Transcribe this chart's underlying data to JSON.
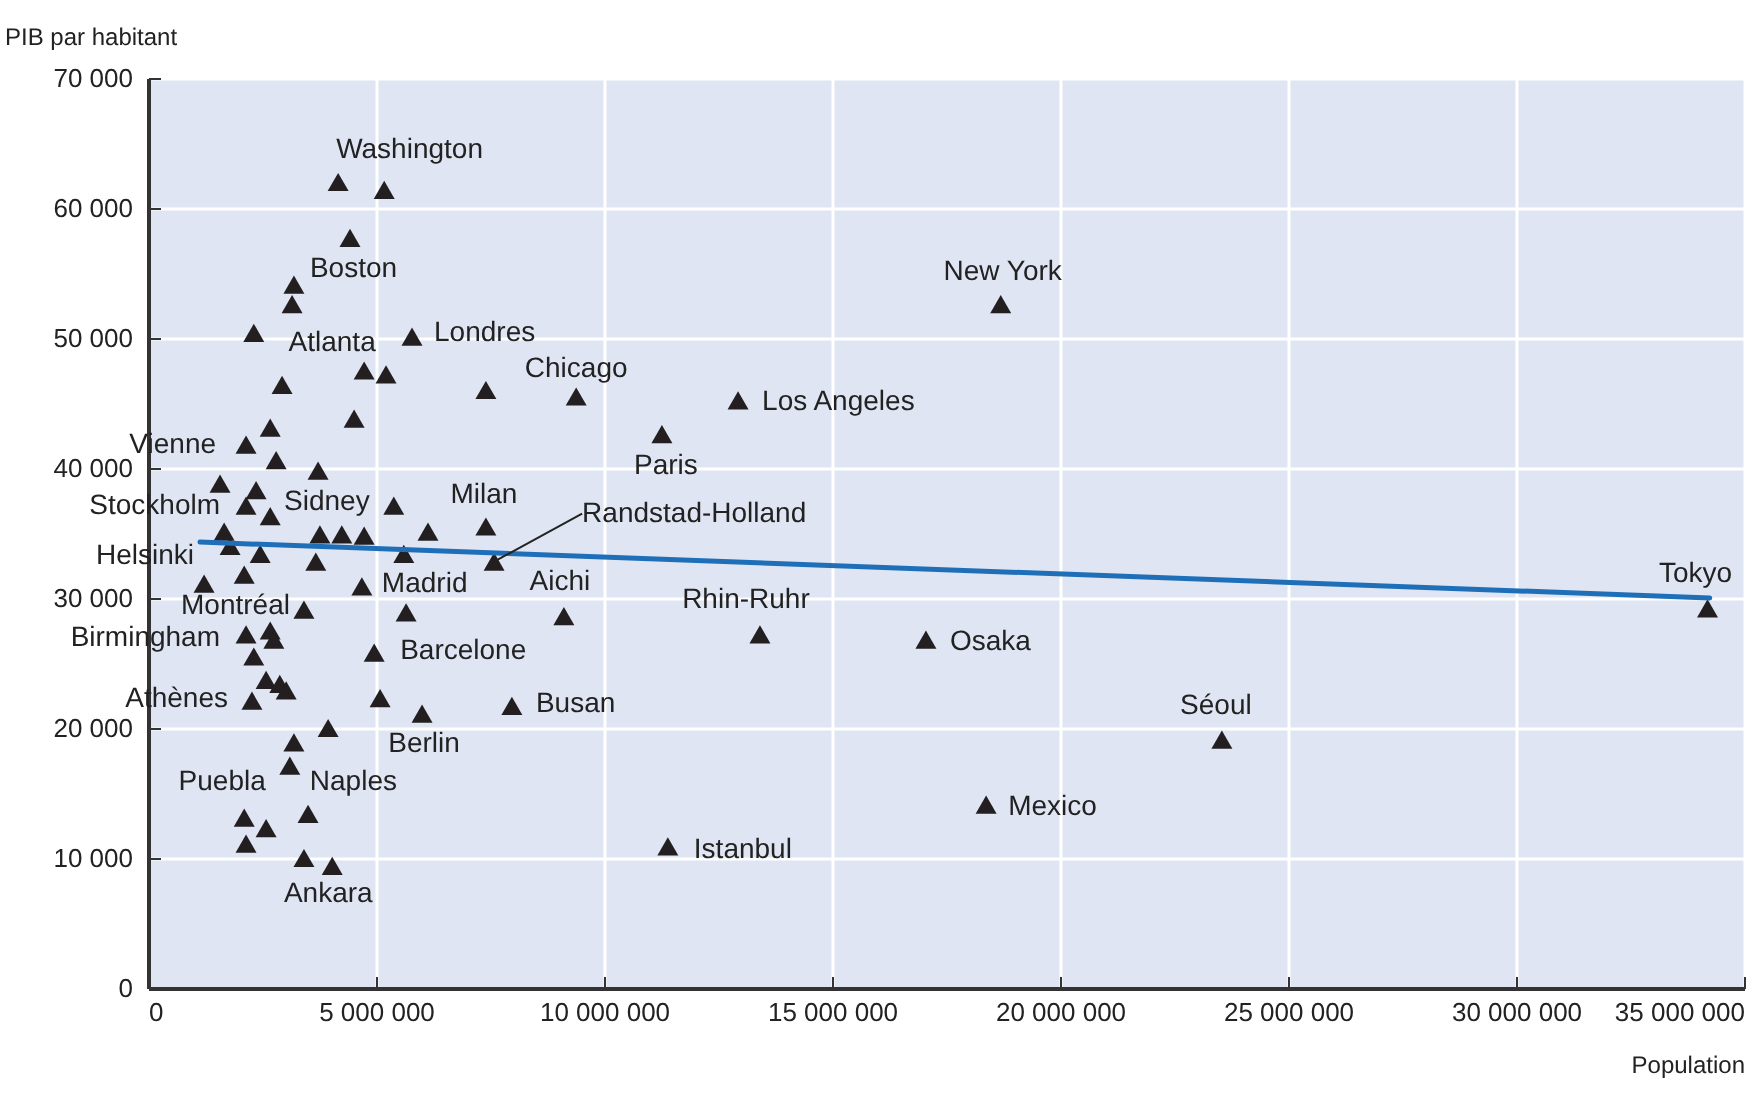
{
  "chart_data": {
    "type": "scatter",
    "xlabel": "Population",
    "ylabel": "PIB par habitant",
    "xlim": [
      0,
      35000000
    ],
    "xticks": [
      0,
      {
        "value": 5000000,
        "label": "5 000 000"
      },
      {
        "value": 10000000,
        "label": "10 000 000"
      },
      {
        "value": 15000000,
        "label": "15 000 000"
      },
      {
        "value": 20000000,
        "label": "20 000 000"
      },
      {
        "value": 25000000,
        "label": "25 000 000"
      },
      {
        "value": 30000000,
        "label": "30 000 000"
      },
      {
        "value": 35000000,
        "label": "35 000 000"
      }
    ],
    "ylim": [
      0,
      70000
    ],
    "yticks": [
      0,
      {
        "value": 10000,
        "label": "10 000"
      },
      {
        "value": 20000,
        "label": "20 000"
      },
      {
        "value": 30000,
        "label": "30 000"
      },
      {
        "value": 40000,
        "label": "40 000"
      },
      {
        "value": 50000,
        "label": "50 000"
      },
      {
        "value": 60000,
        "label": "60 000"
      },
      {
        "value": 70000,
        "label": "70 000"
      }
    ],
    "grid": true,
    "marker": "triangle",
    "series": [
      {
        "type": "scatter",
        "color": "#231f20",
        "x": [
          4170000,
          5180000,
          4430000,
          3200000,
          3160000,
          2320000,
          5790000,
          4740000,
          5220000,
          2940000,
          7410000,
          9390000,
          4520000,
          2680000,
          2150000,
          2810000,
          3730000,
          1580000,
          2370000,
          2150000,
          2680000,
          1670000,
          1800000,
          2460000,
          2110000,
          1230000,
          3770000,
          4250000,
          4740000,
          5390000,
          6140000,
          7410000,
          5610000,
          3680000,
          7590000,
          4690000,
          3420000,
          5660000,
          9120000,
          2150000,
          2680000,
          2760000,
          2320000,
          4960000,
          2590000,
          2890000,
          3030000,
          2280000,
          5090000,
          6010000,
          7980000,
          3950000,
          3200000,
          3110000,
          3510000,
          2110000,
          2590000,
          2150000,
          3420000,
          4040000,
          18700000,
          12940000,
          11270000,
          13420000,
          17060000,
          18380000,
          11400000,
          23550000,
          34200000
        ],
        "values": [
          62000,
          61400,
          57700,
          54100,
          52600,
          50400,
          50100,
          47500,
          47200,
          46400,
          46000,
          45500,
          43800,
          43100,
          41800,
          40600,
          39800,
          38800,
          38300,
          37100,
          36300,
          35100,
          34000,
          33400,
          31800,
          31100,
          34900,
          34900,
          34800,
          37100,
          35100,
          35500,
          33400,
          32800,
          32800,
          30900,
          29100,
          28900,
          28600,
          27200,
          27500,
          26800,
          25500,
          25800,
          23700,
          23400,
          22900,
          22100,
          22300,
          21100,
          21700,
          20000,
          18900,
          17100,
          13400,
          13100,
          12300,
          11100,
          10000,
          9400,
          52600,
          45200,
          42600,
          27200,
          26800,
          14100,
          10900,
          19100,
          29200
        ]
      },
      {
        "type": "line",
        "marker": "none",
        "color": "#1f6fb8",
        "x": [
          1140000,
          34250000
        ],
        "values": [
          34300,
          30000
        ]
      }
    ],
    "annotations": [
      {
        "text": "Washington",
        "x": 4170000,
        "y": 62000
      },
      {
        "text": "Boston",
        "x": 3200000,
        "y": 54100
      },
      {
        "text": "Atlanta",
        "x": 4740000,
        "y": 47500
      },
      {
        "text": "Londres",
        "x": 5790000,
        "y": 50100
      },
      {
        "text": "Chicago",
        "x": 9390000,
        "y": 45500
      },
      {
        "text": "New York",
        "x": 18700000,
        "y": 52600
      },
      {
        "text": "Los Angeles",
        "x": 12940000,
        "y": 45200
      },
      {
        "text": "Paris",
        "x": 11270000,
        "y": 42600
      },
      {
        "text": "Vienne",
        "x": 2150000,
        "y": 41800
      },
      {
        "text": "Stockholm",
        "x": 2150000,
        "y": 37100
      },
      {
        "text": "Sidney",
        "x": 2370000,
        "y": 38300
      },
      {
        "text": "Milan",
        "x": 7410000,
        "y": 35500
      },
      {
        "text": "Randstad-Holland",
        "x": 7590000,
        "y": 32800
      },
      {
        "text": "Helsinki",
        "x": 1230000,
        "y": 31100
      },
      {
        "text": "Madrid",
        "x": 4690000,
        "y": 30900
      },
      {
        "text": "Aichi",
        "x": 9120000,
        "y": 28600
      },
      {
        "text": "Montréal",
        "x": 3420000,
        "y": 29100
      },
      {
        "text": "Rhin-Ruhr",
        "x": 13420000,
        "y": 27200
      },
      {
        "text": "Tokyo",
        "x": 34200000,
        "y": 29200
      },
      {
        "text": "Birmingham",
        "x": 2150000,
        "y": 27200
      },
      {
        "text": "Barcelone",
        "x": 4960000,
        "y": 25800
      },
      {
        "text": "Osaka",
        "x": 17060000,
        "y": 26800
      },
      {
        "text": "Athènes",
        "x": 2280000,
        "y": 22100
      },
      {
        "text": "Busan",
        "x": 7980000,
        "y": 21700
      },
      {
        "text": "Berlin",
        "x": 6010000,
        "y": 21100
      },
      {
        "text": "Séoul",
        "x": 23550000,
        "y": 19100
      },
      {
        "text": "Puebla",
        "x": 2110000,
        "y": 13100
      },
      {
        "text": "Naples",
        "x": 3110000,
        "y": 17100
      },
      {
        "text": "Mexico",
        "x": 18380000,
        "y": 14100
      },
      {
        "text": "Istanbul",
        "x": 11400000,
        "y": 10900
      },
      {
        "text": "Ankara",
        "x": 4040000,
        "y": 9400
      }
    ]
  }
}
